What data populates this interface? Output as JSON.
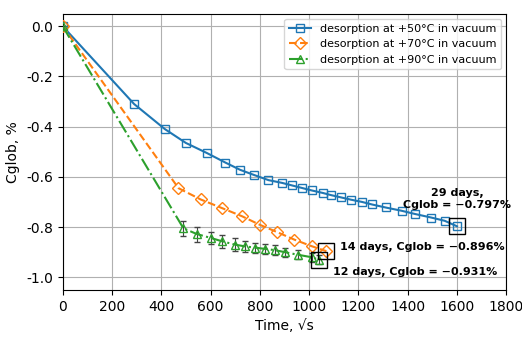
{
  "chart_data": {
    "type": "line",
    "xlabel": "Time, √s",
    "ylabel": "Cglob, %",
    "xlim": [
      0,
      1800
    ],
    "ylim": [
      -1.05,
      0.05
    ],
    "xticks": [
      0,
      200,
      400,
      600,
      800,
      1000,
      1200,
      1400,
      1600,
      1800
    ],
    "yticks": [
      0.0,
      -0.2,
      -0.4,
      -0.6,
      -0.8,
      -1.0
    ],
    "grid": true,
    "legend": "upper right",
    "series": [
      {
        "name": "desorption at +50°C in vacuum",
        "marker": "square",
        "line_style": "solid",
        "x": [
          0,
          290,
          415,
          500,
          585,
          660,
          720,
          775,
          835,
          890,
          930,
          970,
          1010,
          1055,
          1090,
          1130,
          1170,
          1215,
          1255,
          1310,
          1375,
          1430,
          1495,
          1550,
          1600
        ],
        "values": [
          0.0,
          -0.31,
          -0.41,
          -0.465,
          -0.505,
          -0.543,
          -0.572,
          -0.592,
          -0.613,
          -0.624,
          -0.634,
          -0.644,
          -0.654,
          -0.664,
          -0.673,
          -0.682,
          -0.691,
          -0.7,
          -0.71,
          -0.722,
          -0.735,
          -0.748,
          -0.762,
          -0.775,
          -0.797
        ]
      },
      {
        "name": "desorption at +70°C in vacuum",
        "marker": "diamond",
        "line_style": "dashed",
        "x": [
          0,
          470,
          560,
          648,
          728,
          800,
          870,
          940,
          1010,
          1070
        ],
        "values": [
          0.0,
          -0.645,
          -0.69,
          -0.725,
          -0.757,
          -0.791,
          -0.82,
          -0.85,
          -0.876,
          -0.896
        ]
      },
      {
        "name": "desorption at +90°C in vacuum",
        "marker": "triangle",
        "line_style": "dashdot",
        "x": [
          0,
          490,
          545,
          600,
          648,
          700,
          740,
          782,
          822,
          862,
          902,
          953,
          1010,
          1042
        ],
        "values": [
          0.0,
          -0.805,
          -0.828,
          -0.843,
          -0.857,
          -0.87,
          -0.877,
          -0.882,
          -0.887,
          -0.892,
          -0.9,
          -0.91,
          -0.92,
          -0.931
        ],
        "errors": [
          0.0,
          0.03,
          0.03,
          0.025,
          0.025,
          0.025,
          0.022,
          0.02,
          0.02,
          0.02,
          0.018,
          0.018,
          0.018,
          0.018
        ]
      }
    ],
    "annotations": [
      {
        "series": "desorption at +50°C in vacuum",
        "text": "29 days,\nCglob = −0.797%"
      },
      {
        "series": "desorption at +70°C in vacuum",
        "text": "14 days, Cglob = −0.896%"
      },
      {
        "series": "desorption at +90°C in vacuum",
        "text": "12 days, Cglob = −0.931%"
      }
    ]
  }
}
